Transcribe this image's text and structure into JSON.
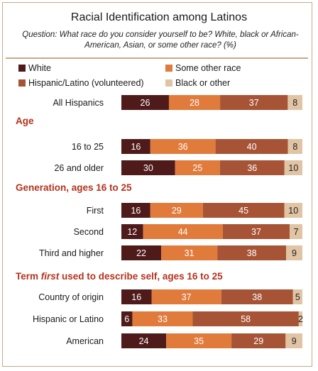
{
  "chart_data": {
    "type": "bar",
    "stacked": true,
    "orientation": "horizontal",
    "title": "Racial Identification among Latinos",
    "subtitle": "Question: What race do you consider yourself to be? White, black or African-American, Asian, or some other race? (%)",
    "legend_position": "top",
    "series": [
      {
        "name": "White",
        "color": "#4f1a1a"
      },
      {
        "name": "Some other race",
        "color": "#e07b3c"
      },
      {
        "name": "Hispanic/Latino (volunteered)",
        "color": "#a65435"
      },
      {
        "name": "Black or other",
        "color": "#e0c4a4"
      }
    ],
    "groups": [
      {
        "heading": "",
        "rows": [
          {
            "label": "All Hispanics",
            "values": [
              26,
              28,
              37,
              8
            ]
          }
        ]
      },
      {
        "heading": "Age",
        "rows": [
          {
            "label": "16 to 25",
            "values": [
              16,
              36,
              40,
              8
            ]
          },
          {
            "label": "26 and older",
            "values": [
              30,
              25,
              36,
              10
            ]
          }
        ]
      },
      {
        "heading": "Generation, ages 16 to 25",
        "rows": [
          {
            "label": "First",
            "values": [
              16,
              29,
              45,
              10
            ]
          },
          {
            "label": "Second",
            "values": [
              12,
              44,
              37,
              7
            ]
          },
          {
            "label": "Third and higher",
            "values": [
              22,
              31,
              38,
              9
            ]
          }
        ]
      },
      {
        "heading_parts": [
          "Term ",
          "first",
          " used to describe self, ages 16 to 25"
        ],
        "rows": [
          {
            "label": "Country of origin",
            "values": [
              16,
              37,
              38,
              5
            ]
          },
          {
            "label": "Hispanic or Latino",
            "values": [
              6,
              33,
              58,
              2
            ]
          },
          {
            "label": "American",
            "values": [
              24,
              35,
              29,
              9
            ]
          }
        ]
      }
    ]
  }
}
